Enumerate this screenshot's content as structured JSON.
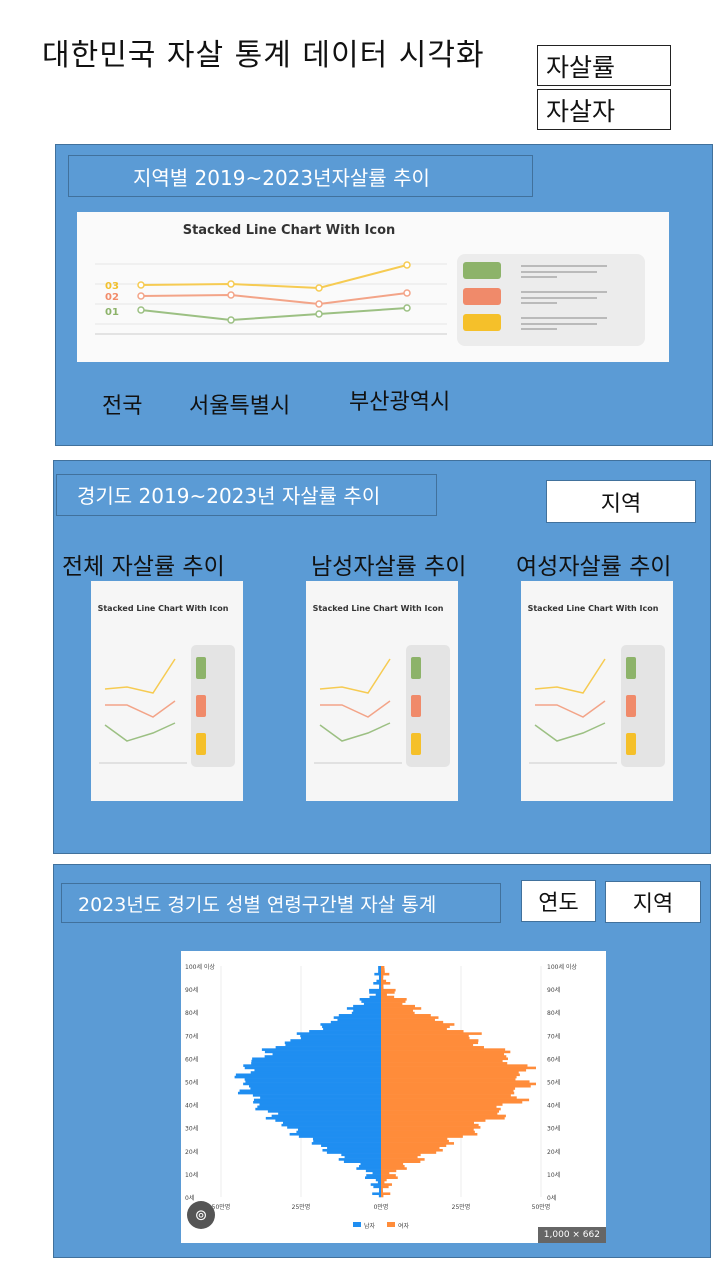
{
  "header": {
    "title": "대한민국 자살 통계 데이터 시각화"
  },
  "menu": [
    {
      "label": "자살률"
    },
    {
      "label": "자살자"
    }
  ],
  "section1": {
    "label": "지역별 2019~2023년자살률 추이",
    "chart_title": "Stacked Line Chart With Icon",
    "series_tags": [
      "03",
      "02",
      "01"
    ],
    "regions": [
      "전국",
      "서울특별시",
      "부산광역시"
    ]
  },
  "section2": {
    "label": "경기도 2019~2023년 자살률 추이",
    "region_button": "지역",
    "cards": [
      {
        "title": "전체 자살률 추이",
        "chart_title": "Stacked Line Chart With Icon"
      },
      {
        "title": "남성자살률 추이",
        "chart_title": "Stacked Line Chart With Icon"
      },
      {
        "title": "여성자살률 추이",
        "chart_title": "Stacked Line Chart With Icon"
      }
    ]
  },
  "section3": {
    "label": "2023년도 경기도 성별 연령구간별 자살 통계",
    "year_button": "연도",
    "region_button": "지역",
    "pyramid": {
      "age_ticks": [
        "100세 이상",
        "90세",
        "80세",
        "70세",
        "60세",
        "50세",
        "40세",
        "30세",
        "20세",
        "10세",
        "0세"
      ],
      "x_ticks": [
        "50만명",
        "25만명",
        "0만명",
        "25만명",
        "50만명"
      ],
      "legend": [
        "남자",
        "여자"
      ],
      "size_badge": "1,000 × 662",
      "colors": {
        "male": "#1f8ef1",
        "female": "#ff8c3a"
      }
    }
  }
}
